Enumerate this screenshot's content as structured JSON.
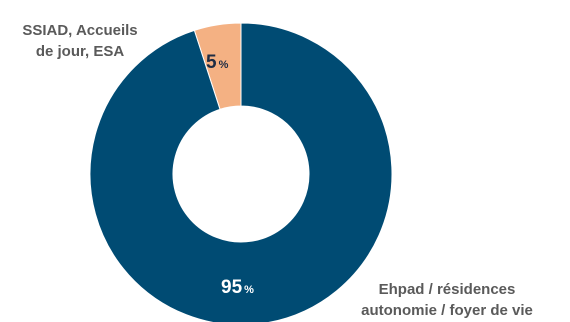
{
  "chart_data": {
    "type": "pie",
    "donut": true,
    "slices": [
      {
        "label_lines": [
          "Ehpad / résidences",
          "autonomie / foyer de vie"
        ],
        "value": 95,
        "unit": "%",
        "color": "#004b73"
      },
      {
        "label_lines": [
          "SSIAD, Accueils",
          "de jour, ESA"
        ],
        "value": 5,
        "unit": "%",
        "color": "#f4b183"
      }
    ]
  }
}
